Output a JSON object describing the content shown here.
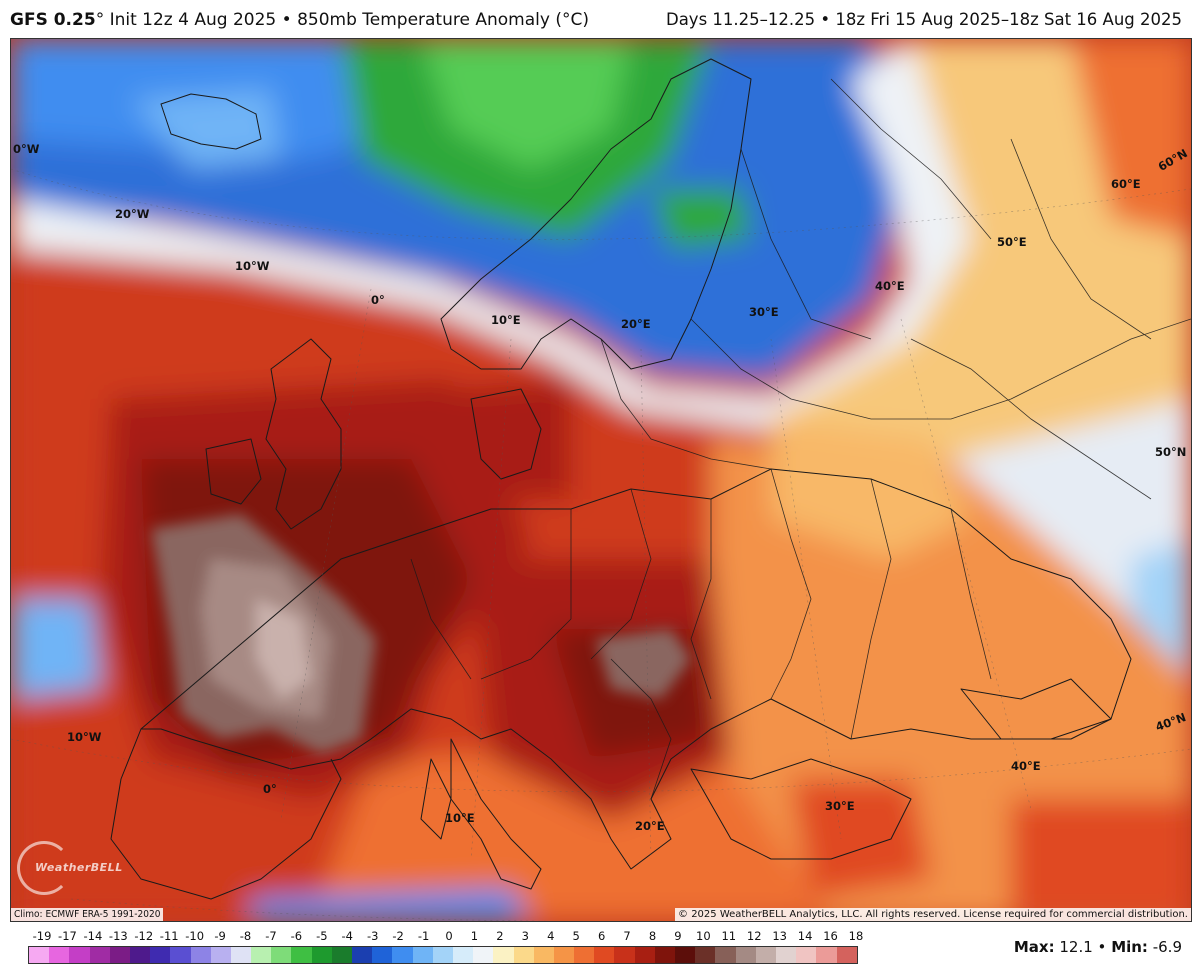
{
  "header": {
    "model": "GFS 0.25",
    "degree": "°",
    "init": "Init 12z 4 Aug 2025",
    "sep": "•",
    "field": "850mb Temperature Anomaly (°C)",
    "valid": "Days 11.25–12.25 • 18z Fri 15 Aug 2025–18z Sat 16 Aug 2025"
  },
  "map": {
    "region": "Europe",
    "graticule_labels": [
      {
        "text": "0°W"
      },
      {
        "text": "20°W"
      },
      {
        "text": "10°W"
      },
      {
        "text": "0°"
      },
      {
        "text": "10°E"
      },
      {
        "text": "20°E"
      },
      {
        "text": "30°E"
      },
      {
        "text": "40°E"
      },
      {
        "text": "50°E"
      },
      {
        "text": "60°E"
      },
      {
        "text": "60°N"
      },
      {
        "text": "50°N"
      },
      {
        "text": "40°N"
      },
      {
        "text": "10°W"
      },
      {
        "text": "0°"
      },
      {
        "text": "10°E"
      },
      {
        "text": "20°E"
      },
      {
        "text": "30°E"
      },
      {
        "text": "40°E"
      }
    ],
    "climo_note": "Climo: ECMWF ERA-5 1991-2020",
    "copyright": "© 2025 WeatherBELL Analytics, LLC. All rights reserved. License required for commercial distribution.",
    "logo_text": "WeatherBELL"
  },
  "legend": {
    "labels": [
      "-19",
      "-17",
      "-14",
      "-13",
      "-12",
      "-11",
      "-10",
      "-9",
      "-8",
      "-7",
      "-6",
      "-5",
      "-4",
      "-3",
      "-2",
      "-1",
      "0",
      "1",
      "2",
      "3",
      "4",
      "5",
      "6",
      "7",
      "8",
      "9",
      "10",
      "11",
      "12",
      "13",
      "14",
      "16",
      "18"
    ],
    "colors": [
      "#f6a9f2",
      "#e766e0",
      "#c43ec6",
      "#a02ca4",
      "#7b1c86",
      "#4e1a8c",
      "#3f2bb0",
      "#5a4fd2",
      "#8d83e6",
      "#b8b0f0",
      "#dfe2f5",
      "#b8f0b0",
      "#7edc79",
      "#3fbf43",
      "#1e9a2e",
      "#1a7c2c",
      "#1b3fb0",
      "#1f63d8",
      "#3f8df0",
      "#6fb4f6",
      "#a3d3f8",
      "#d6ecfa",
      "#f0f4f8",
      "#fbf2c4",
      "#fbd98a",
      "#f9b862",
      "#f59446",
      "#ee6f33",
      "#e04a22",
      "#c8311a",
      "#a81f12",
      "#7f140c",
      "#5c0e0a",
      "#6b3028",
      "#876058",
      "#a48a84",
      "#c3aea9",
      "#e1d2d0",
      "#f0c4c2",
      "#eb9b98",
      "#d4625d"
    ]
  },
  "stats": {
    "max_label": "Max:",
    "max_value": "12.1",
    "sep": "•",
    "min_label": "Min:",
    "min_value": "-6.9"
  }
}
